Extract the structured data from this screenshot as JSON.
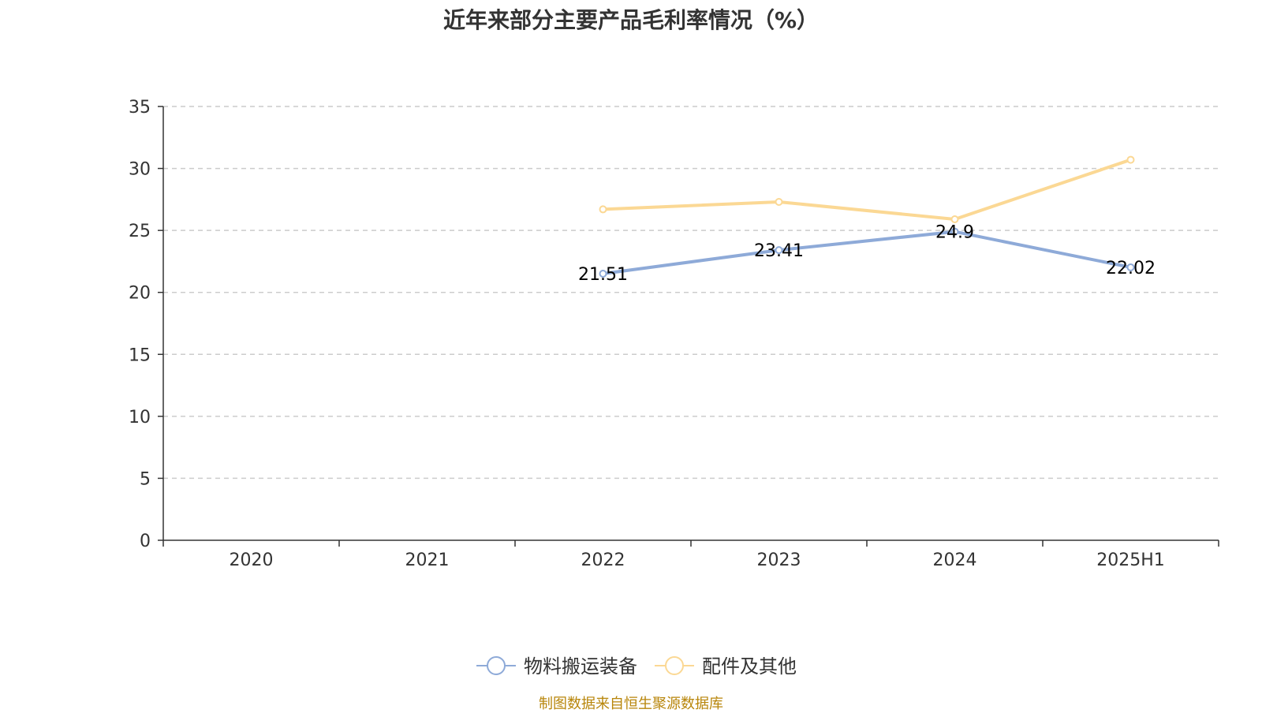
{
  "title": "近年来部分主要产品毛利率情况（%）",
  "source": "制图数据来自恒生聚源数据库",
  "colors": {
    "series1": "#8eaad8",
    "series2": "#fbd894",
    "axis": "#333333",
    "grid": "#cccccc"
  },
  "chart_data": {
    "type": "line",
    "title": "近年来部分主要产品毛利率情况（%）",
    "categories": [
      "2020",
      "2021",
      "2022",
      "2023",
      "2024",
      "2025H1"
    ],
    "ylim": [
      0,
      35
    ],
    "yticks": [
      0,
      5,
      10,
      15,
      20,
      25,
      30,
      35
    ],
    "grid": true,
    "legend_position": "bottom",
    "series": [
      {
        "name": "物料搬运装备",
        "values": [
          null,
          null,
          21.51,
          23.41,
          24.9,
          22.02
        ],
        "labels": [
          "",
          "",
          "21.51",
          "23.41",
          "24.9",
          "22.02"
        ]
      },
      {
        "name": "配件及其他",
        "values": [
          null,
          null,
          26.7,
          27.3,
          25.9,
          30.7
        ],
        "labels": [
          "",
          "",
          "",
          "",
          "",
          ""
        ]
      }
    ]
  }
}
